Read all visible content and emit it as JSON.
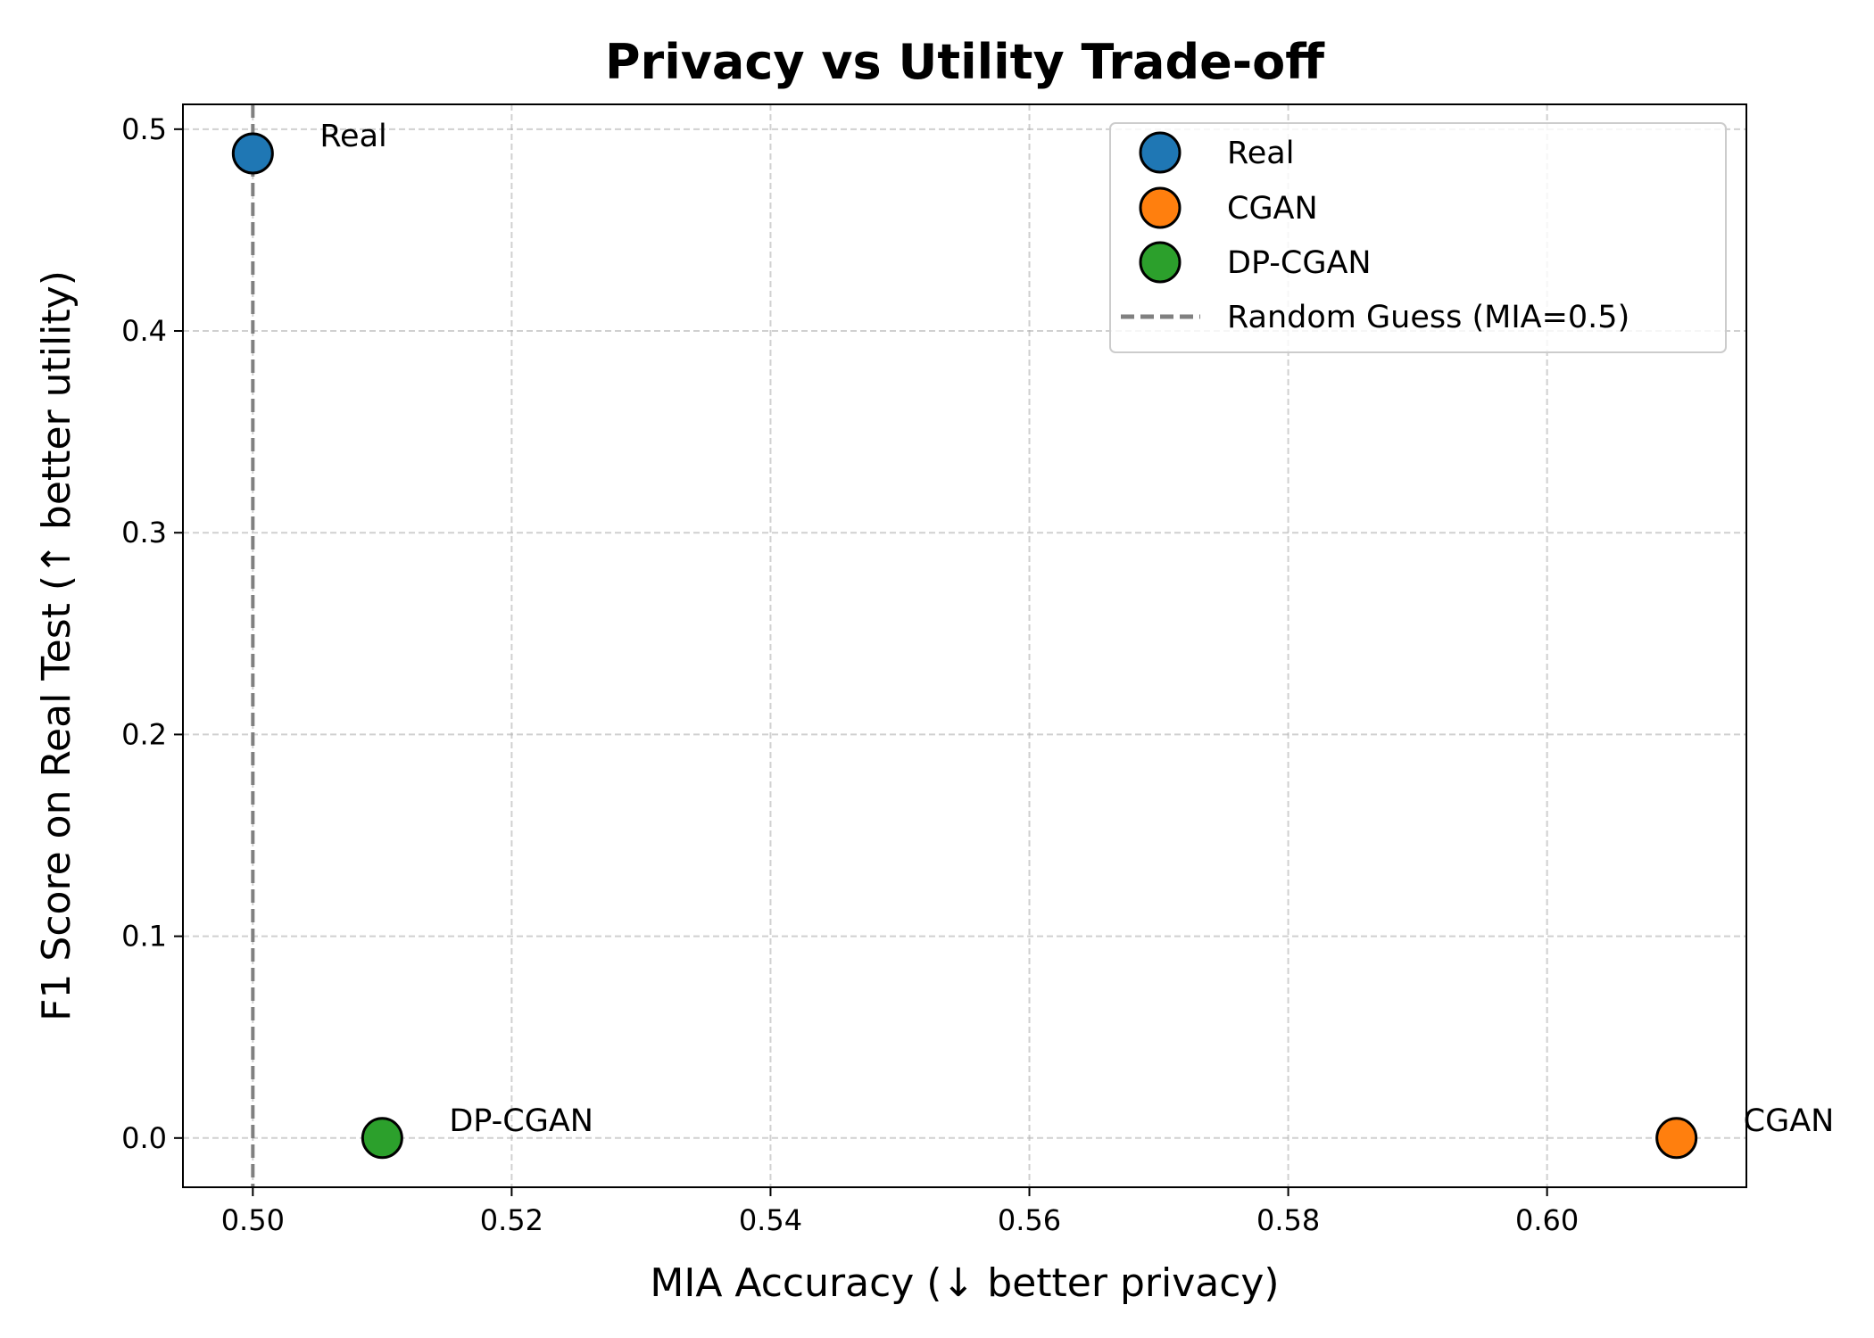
{
  "chart_data": {
    "type": "scatter",
    "title": "Privacy vs Utility Trade-off",
    "xlabel": "MIA Accuracy (↓ better privacy)",
    "ylabel": "F1 Score on Real Test (↑ better utility)",
    "xlim": [
      0.4946,
      0.6154
    ],
    "ylim": [
      -0.0244,
      0.5123
    ],
    "x_ticks": [
      "0.50",
      "0.52",
      "0.54",
      "0.56",
      "0.58",
      "0.60"
    ],
    "y_ticks": [
      "0.0",
      "0.1",
      "0.2",
      "0.3",
      "0.4",
      "0.5"
    ],
    "grid": true,
    "legend_position": "top-right",
    "series": [
      {
        "name": "Real",
        "x": 0.5,
        "y": 0.488,
        "color": "#1f77b4",
        "label": "Real"
      },
      {
        "name": "CGAN",
        "x": 0.61,
        "y": 0.0,
        "color": "#ff7f0e",
        "label": "CGAN"
      },
      {
        "name": "DP-CGAN",
        "x": 0.51,
        "y": 0.0,
        "color": "#2ca02c",
        "label": "DP-CGAN"
      }
    ],
    "reference_line": {
      "name": "Random Guess (MIA=0.5)",
      "x": 0.5,
      "color": "#808080",
      "style": "dashed"
    }
  }
}
